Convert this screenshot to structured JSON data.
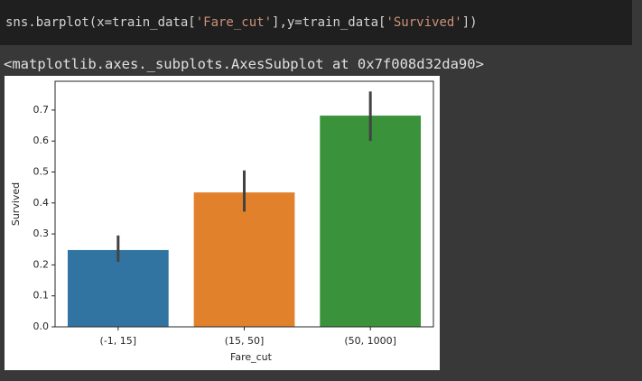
{
  "code": {
    "tokens": [
      {
        "text": "sns.barplot(x=train_data[",
        "color": "#d4d4d4"
      },
      {
        "text": "'Fare_cut'",
        "color": "#ce9178"
      },
      {
        "text": "],y=train_data[",
        "color": "#d4d4d4"
      },
      {
        "text": "'Survived'",
        "color": "#ce9178"
      },
      {
        "text": "])",
        "color": "#d4d4d4"
      }
    ]
  },
  "output_text": "<matplotlib.axes._subplots.AxesSubplot at 0x7f008d32da90>",
  "chart_data": {
    "type": "bar",
    "x_label": "Fare_cut",
    "y_label": "Survived",
    "categories": [
      "(-1, 15]",
      "(15, 50]",
      "(50, 1000]"
    ],
    "values": [
      0.248,
      0.434,
      0.682
    ],
    "colors": [
      "#3274a1",
      "#e1812c",
      "#3a923a"
    ],
    "ci_low": [
      0.21,
      0.372,
      0.6
    ],
    "ci_high": [
      0.295,
      0.505,
      0.76
    ],
    "ylim": [
      0,
      0.793
    ],
    "yticks": [
      {
        "value": 0,
        "label": "0.0"
      },
      0.1,
      0.2,
      0.3,
      0.4,
      0.5,
      0.6,
      0.7
    ]
  }
}
